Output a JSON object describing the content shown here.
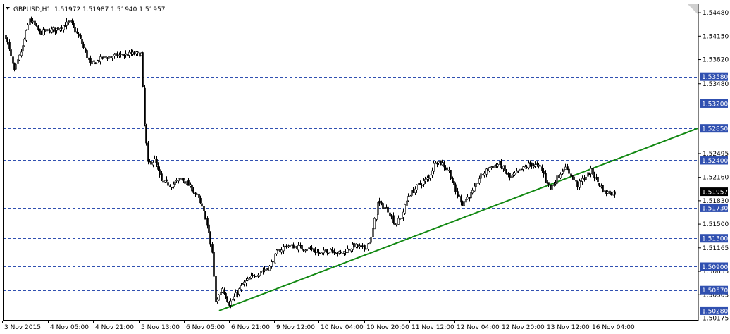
{
  "header": {
    "symbol": "GBPUSD,H1",
    "ohlc": "1.51972 1.51987 1.51940 1.51957"
  },
  "colors": {
    "background": "#ffffff",
    "candle": "#000000",
    "level_line": "#3050b0",
    "level_tag_bg": "#3050b0",
    "level_tag_text": "#ffffff",
    "trendline": "#118811",
    "price_tag_bg": "#000000",
    "price_tag_text": "#ffffff",
    "bid_line": "#c0c0c0"
  },
  "chart_data": {
    "type": "candlestick",
    "symbol": "GBPUSD",
    "timeframe": "H1",
    "ylim": [
      1.5015,
      1.546
    ],
    "y_ticks": [
      "1.54480",
      "1.54150",
      "1.53820",
      "1.53480",
      "1.52495",
      "1.52160",
      "1.51830",
      "1.51500",
      "1.51165",
      "1.50835",
      "1.50505",
      "1.50175"
    ],
    "x_ticks": [
      "3 Nov 2015",
      "4 Nov 05:00",
      "4 Nov 21:00",
      "5 Nov 13:00",
      "6 Nov 05:00",
      "6 Nov 21:00",
      "9 Nov 12:00",
      "10 Nov 04:00",
      "10 Nov 20:00",
      "11 Nov 12:00",
      "12 Nov 04:00",
      "12 Nov 20:00",
      "13 Nov 12:00",
      "16 Nov 04:00"
    ],
    "current_price": "1.51957",
    "horizontal_levels": [
      "1.53580",
      "1.53200",
      "1.52850",
      "1.52400",
      "1.51730",
      "1.51300",
      "1.50900",
      "1.50570",
      "1.50280"
    ],
    "trendline": {
      "from": {
        "bar": 0,
        "price": 1.5028
      },
      "to": {
        "bar": 1,
        "price": 1.5285
      }
    },
    "close_path": [
      [
        0,
        1.5415
      ],
      [
        5,
        1.5365
      ],
      [
        10,
        1.54
      ],
      [
        14,
        1.544
      ],
      [
        20,
        1.542
      ],
      [
        30,
        1.5425
      ],
      [
        38,
        1.5435
      ],
      [
        44,
        1.541
      ],
      [
        50,
        1.5375
      ],
      [
        58,
        1.5385
      ],
      [
        66,
        1.5388
      ],
      [
        76,
        1.539
      ],
      [
        80,
        1.539
      ],
      [
        82,
        1.529
      ],
      [
        84,
        1.5235
      ],
      [
        88,
        1.524
      ],
      [
        92,
        1.521
      ],
      [
        98,
        1.5205
      ],
      [
        104,
        1.5215
      ],
      [
        110,
        1.52
      ],
      [
        114,
        1.5185
      ],
      [
        118,
        1.516
      ],
      [
        122,
        1.511
      ],
      [
        124,
        1.504
      ],
      [
        128,
        1.506
      ],
      [
        132,
        1.5038
      ],
      [
        136,
        1.505
      ],
      [
        140,
        1.5065
      ],
      [
        148,
        1.508
      ],
      [
        156,
        1.509
      ],
      [
        160,
        1.511
      ],
      [
        166,
        1.512
      ],
      [
        172,
        1.5118
      ],
      [
        180,
        1.5115
      ],
      [
        186,
        1.5108
      ],
      [
        192,
        1.5115
      ],
      [
        198,
        1.5108
      ],
      [
        206,
        1.512
      ],
      [
        212,
        1.5115
      ],
      [
        216,
        1.513
      ],
      [
        220,
        1.518
      ],
      [
        226,
        1.517
      ],
      [
        230,
        1.515
      ],
      [
        234,
        1.516
      ],
      [
        238,
        1.519
      ],
      [
        244,
        1.5205
      ],
      [
        250,
        1.5215
      ],
      [
        254,
        1.524
      ],
      [
        258,
        1.5235
      ],
      [
        262,
        1.5225
      ],
      [
        266,
        1.5195
      ],
      [
        270,
        1.518
      ],
      [
        276,
        1.5195
      ],
      [
        280,
        1.5215
      ],
      [
        286,
        1.523
      ],
      [
        292,
        1.5235
      ],
      [
        298,
        1.5215
      ],
      [
        304,
        1.5225
      ],
      [
        310,
        1.5235
      ],
      [
        316,
        1.523
      ],
      [
        322,
        1.52
      ],
      [
        326,
        1.5215
      ],
      [
        330,
        1.523
      ],
      [
        334,
        1.522
      ],
      [
        338,
        1.5205
      ],
      [
        342,
        1.5215
      ],
      [
        346,
        1.5225
      ],
      [
        350,
        1.521
      ],
      [
        354,
        1.5195
      ],
      [
        360,
        1.5194
      ]
    ]
  }
}
